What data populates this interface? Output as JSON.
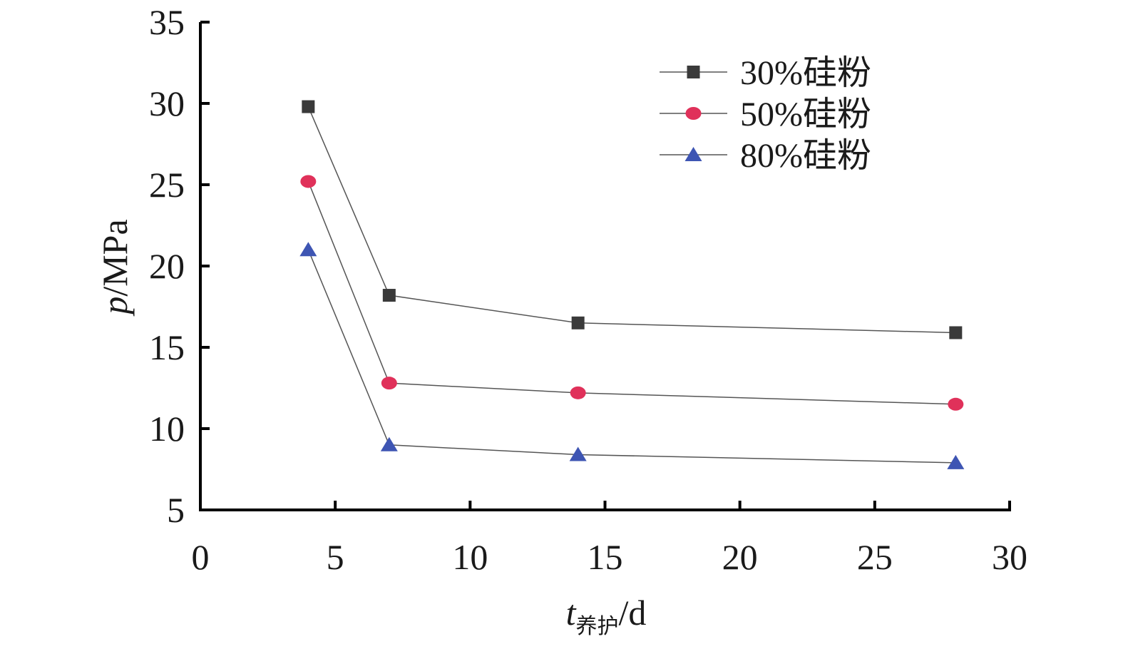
{
  "chart_data": {
    "type": "line",
    "xlabel": {
      "prefix": "t",
      "subscript": "养护",
      "suffix": "/d"
    },
    "ylabel": {
      "italic": "p",
      "rest": "/MPa"
    },
    "xlim": [
      0,
      30
    ],
    "ylim": [
      5,
      35
    ],
    "x_ticks": [
      0,
      5,
      10,
      15,
      20,
      25,
      30
    ],
    "y_ticks": [
      5,
      10,
      15,
      20,
      25,
      30,
      35
    ],
    "grid": false,
    "legend_position": "top-right",
    "x": [
      4,
      7,
      14,
      28
    ],
    "series": [
      {
        "name": "30%硅粉",
        "marker": "square",
        "color": "#3a3a3a",
        "values": [
          29.8,
          18.2,
          16.5,
          15.9
        ]
      },
      {
        "name": "50%硅粉",
        "marker": "circle",
        "color": "#e0315a",
        "values": [
          25.2,
          12.8,
          12.2,
          11.5
        ]
      },
      {
        "name": "80%硅粉",
        "marker": "triangle",
        "color": "#3e55b3",
        "values": [
          21.0,
          9.0,
          8.4,
          7.9
        ]
      }
    ]
  }
}
